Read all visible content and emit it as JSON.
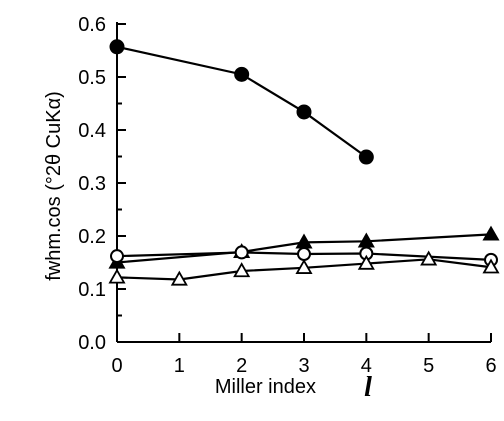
{
  "chart_data": {
    "type": "scatter",
    "title": "",
    "xlabel": "Miller index",
    "xlabel_symbol": "l",
    "ylabel": "fwhm.cos (°2θ CuKα)",
    "xlim": [
      0,
      6
    ],
    "ylim": [
      0,
      0.6
    ],
    "x_ticks": [
      "0",
      "1",
      "2",
      "3",
      "4",
      "5",
      "6"
    ],
    "y_ticks": [
      "0.0",
      "0.1",
      "0.2",
      "0.3",
      "0.4",
      "0.5",
      "0.6"
    ],
    "grid": false,
    "legend": "none",
    "series": [
      {
        "marker": "filled-circle",
        "x": [
          0,
          2,
          3,
          4
        ],
        "values": [
          0.557,
          0.505,
          0.434,
          0.349
        ]
      },
      {
        "marker": "filled-triangle",
        "x": [
          0,
          2,
          3,
          4,
          6
        ],
        "values": [
          0.15,
          0.17,
          0.188,
          0.19,
          0.203
        ]
      },
      {
        "marker": "open-circle",
        "x": [
          0,
          2,
          3,
          4,
          6
        ],
        "values": [
          0.162,
          0.169,
          0.166,
          0.167,
          0.155
        ]
      },
      {
        "marker": "open-triangle",
        "x": [
          0,
          1,
          2,
          3,
          4,
          5,
          6
        ],
        "values": [
          0.122,
          0.118,
          0.134,
          0.14,
          0.148,
          0.156,
          0.141
        ]
      }
    ]
  }
}
